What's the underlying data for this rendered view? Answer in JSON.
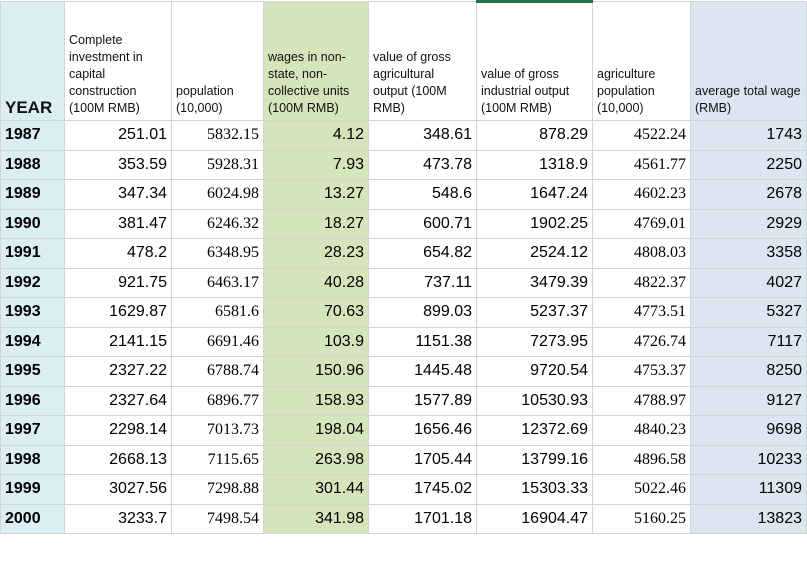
{
  "headers": [
    "YEAR",
    "Complete investment in capital construction (100M RMB)",
    "population (10,000)",
    "wages in non-state, non-collective units (100M RMB)",
    "value of gross agricultural output (100M RMB)",
    "value of gross industrial output (100M RMB)",
    "agriculture population (10,000)",
    "average total wage (RMB)"
  ],
  "colors": {
    "year_column": "#daeef3",
    "wages_column": "#d6e4bc",
    "avg_wage_column": "#dce6f1",
    "grid_line": "#d4d4d4",
    "selection": "#217346"
  },
  "rows": [
    [
      "1987",
      "251.01",
      "5832.15",
      "4.12",
      "348.61",
      "878.29",
      "4522.24",
      "1743"
    ],
    [
      "1988",
      "353.59",
      "5928.31",
      "7.93",
      "473.78",
      "1318.9",
      "4561.77",
      "2250"
    ],
    [
      "1989",
      "347.34",
      "6024.98",
      "13.27",
      "548.6",
      "1647.24",
      "4602.23",
      "2678"
    ],
    [
      "1990",
      "381.47",
      "6246.32",
      "18.27",
      "600.71",
      "1902.25",
      "4769.01",
      "2929"
    ],
    [
      "1991",
      "478.2",
      "6348.95",
      "28.23",
      "654.82",
      "2524.12",
      "4808.03",
      "3358"
    ],
    [
      "1992",
      "921.75",
      "6463.17",
      "40.28",
      "737.11",
      "3479.39",
      "4822.37",
      "4027"
    ],
    [
      "1993",
      "1629.87",
      "6581.6",
      "70.63",
      "899.03",
      "5237.37",
      "4773.51",
      "5327"
    ],
    [
      "1994",
      "2141.15",
      "6691.46",
      "103.9",
      "1151.38",
      "7273.95",
      "4726.74",
      "7117"
    ],
    [
      "1995",
      "2327.22",
      "6788.74",
      "150.96",
      "1445.48",
      "9720.54",
      "4753.37",
      "8250"
    ],
    [
      "1996",
      "2327.64",
      "6896.77",
      "158.93",
      "1577.89",
      "10530.93",
      "4788.97",
      "9127"
    ],
    [
      "1997",
      "2298.14",
      "7013.73",
      "198.04",
      "1656.46",
      "12372.69",
      "4840.23",
      "9698"
    ],
    [
      "1998",
      "2668.13",
      "7115.65",
      "263.98",
      "1705.44",
      "13799.16",
      "4896.58",
      "10233"
    ],
    [
      "1999",
      "3027.56",
      "7298.88",
      "301.44",
      "1745.02",
      "15303.33",
      "5022.46",
      "11309"
    ],
    [
      "2000",
      "3233.7",
      "7498.54",
      "341.98",
      "1701.18",
      "16904.47",
      "5160.25",
      "13823"
    ]
  ]
}
